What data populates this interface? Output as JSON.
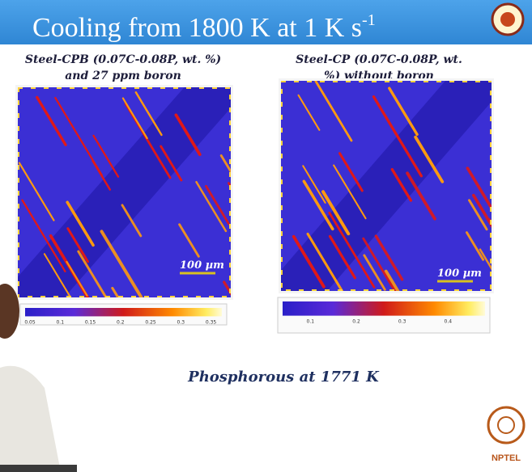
{
  "header": {
    "title": "Cooling from 1800 K at 1 K s",
    "title_superscript": "-1"
  },
  "panels": [
    {
      "caption": [
        "Steel-CPB (0.07C-0.08P, wt. %)",
        "and 27 ppm boron"
      ],
      "scale_bar": "100 µm",
      "colorbar_ticks": [
        "0.05",
        "0.1",
        "0.15",
        "0.2",
        "0.25",
        "0.3",
        "0.35"
      ]
    },
    {
      "caption": [
        "Steel-CP (0.07C-0.08P, wt.",
        "%) without boron"
      ],
      "scale_bar": "100 µm",
      "colorbar_ticks": [
        "0.1",
        "0.2",
        "0.3",
        "0.4"
      ]
    }
  ],
  "footer": {
    "label": "Phosphorous at 1771 K"
  },
  "logo": {
    "text": "NPTEL"
  }
}
